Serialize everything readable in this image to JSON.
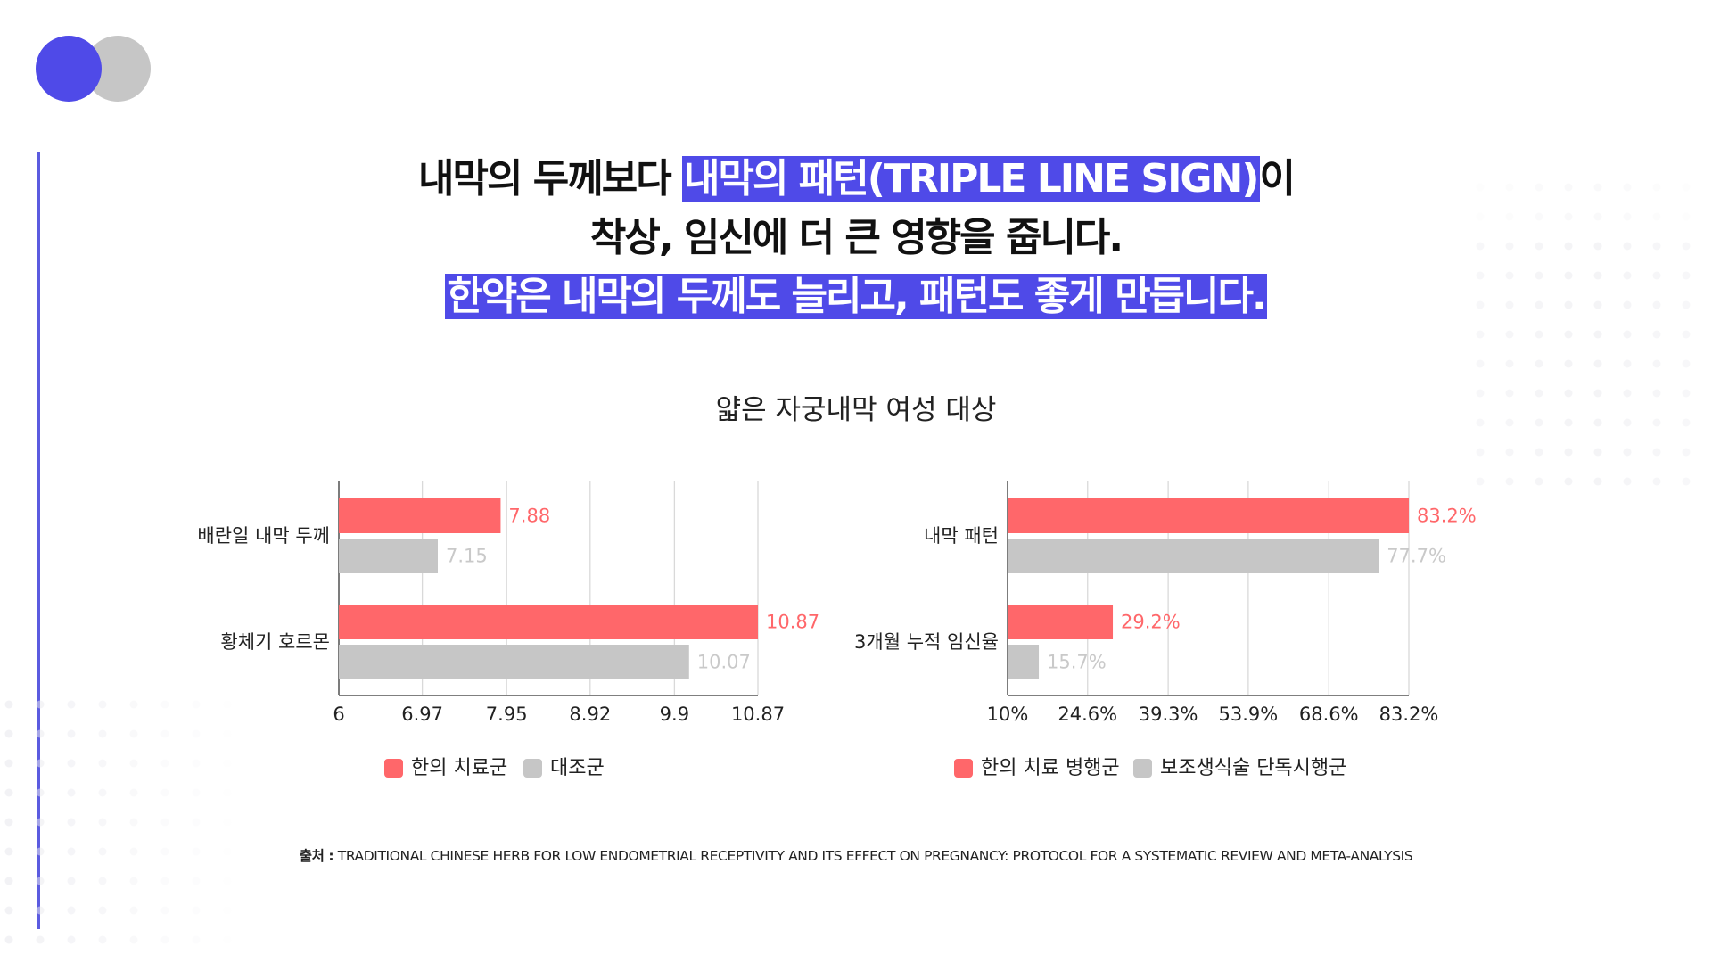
{
  "headline": {
    "line1_a": "내막의 두께보다 ",
    "line1_highlight": "내막의 패턴(TRIPLE LINE SIGN)",
    "line1_b": "이",
    "line2": "착상, 임신에 더 큰 영향을 줍니다.",
    "line3_highlight": "한약은 내막의 두께도 늘리고, 패턴도 좋게 만듭니다."
  },
  "subtitle": "얇은 자궁내막 여성 대상",
  "colors": {
    "accent": "#4f4ae8",
    "treatment": "#ff676a",
    "control": "#c6c6c6",
    "gray_circle": "#c6c6c6"
  },
  "chart_data": [
    {
      "type": "bar",
      "orientation": "horizontal",
      "categories": [
        "배란일 내막 두께",
        "황체기 호르몬"
      ],
      "series": [
        {
          "name": "한의 치료군",
          "values": [
            7.88,
            10.87
          ],
          "labels": [
            "7.88",
            "10.87"
          ],
          "color": "#ff676a"
        },
        {
          "name": "대조군",
          "values": [
            7.15,
            10.07
          ],
          "labels": [
            "7.15",
            "10.07"
          ],
          "color": "#c6c6c6"
        }
      ],
      "xlim": [
        6,
        10.87
      ],
      "ticks": [
        6,
        6.97,
        7.95,
        8.92,
        9.9,
        10.87
      ],
      "tick_labels": [
        "6",
        "6.97",
        "7.95",
        "8.92",
        "9.9",
        "10.87"
      ],
      "grid": true,
      "legend": "bottom"
    },
    {
      "type": "bar",
      "orientation": "horizontal",
      "categories": [
        "내막 패턴",
        "3개월 누적 임신율"
      ],
      "series": [
        {
          "name": "한의 치료 병행군",
          "values": [
            83.2,
            29.2
          ],
          "labels": [
            "83.2%",
            "29.2%"
          ],
          "color": "#ff676a"
        },
        {
          "name": "보조생식술 단독시행군",
          "values": [
            77.7,
            15.7
          ],
          "labels": [
            "77.7%",
            "15.7%"
          ],
          "color": "#c6c6c6"
        }
      ],
      "xlim": [
        10,
        83.2
      ],
      "ticks": [
        10,
        24.6,
        39.3,
        53.9,
        68.6,
        83.2
      ],
      "tick_labels": [
        "10%",
        "24.6%",
        "39.3%",
        "53.9%",
        "68.6%",
        "83.2%"
      ],
      "grid": true,
      "legend": "bottom"
    }
  ],
  "source": {
    "prefix": "출처 :",
    "text": "TRADITIONAL CHINESE HERB FOR LOW ENDOMETRIAL RECEPTIVITY AND ITS EFFECT ON PREGNANCY: PROTOCOL FOR A SYSTEMATIC REVIEW AND META-ANALYSIS"
  }
}
